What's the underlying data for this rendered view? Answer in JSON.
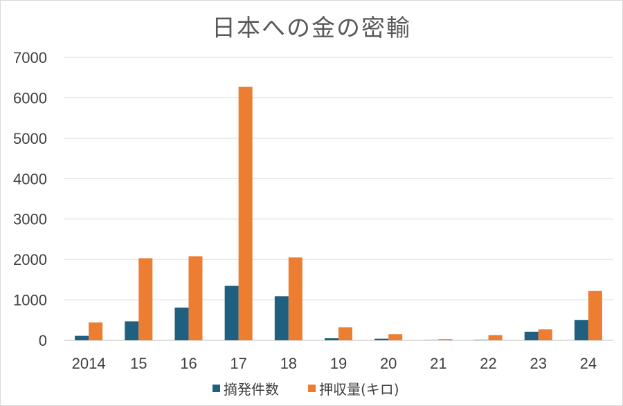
{
  "chart_data": {
    "type": "bar",
    "title": "日本への金の密輸",
    "categories": [
      "2014",
      "15",
      "16",
      "17",
      "18",
      "19",
      "20",
      "21",
      "22",
      "23",
      "24"
    ],
    "series": [
      {
        "name": "摘発件数",
        "color": "#1f5f7f",
        "values": [
          110,
          470,
          810,
          1350,
          1090,
          50,
          40,
          5,
          10,
          210,
          500
        ]
      },
      {
        "name": "押収量(キロ)",
        "color": "#ed7d31",
        "values": [
          440,
          2030,
          2080,
          6270,
          2050,
          320,
          150,
          30,
          130,
          270,
          1220
        ]
      }
    ],
    "ylim": [
      0,
      7000
    ],
    "yticks": [
      0,
      1000,
      2000,
      3000,
      4000,
      5000,
      6000,
      7000
    ],
    "grid": true,
    "legend_position": "bottom"
  }
}
